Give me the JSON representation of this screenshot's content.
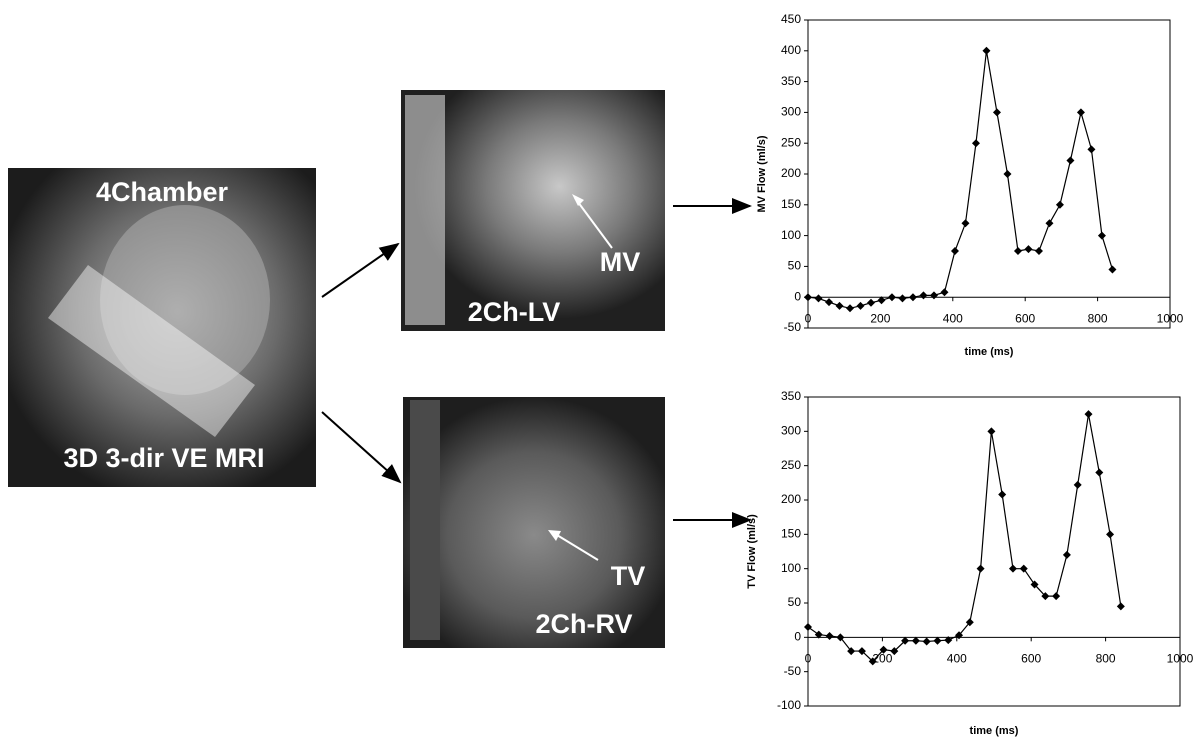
{
  "images": {
    "four_chamber": {
      "label": "4Chamber",
      "caption": "3D 3-dir VE MRI"
    },
    "lv": {
      "pointer": "MV",
      "label": "2Ch-LV"
    },
    "rv": {
      "pointer": "TV",
      "label": "2Ch-RV"
    }
  },
  "chart_data": [
    {
      "type": "line",
      "y_label": "MV Flow (ml/s)",
      "x_label": "time (ms)",
      "x": [
        0,
        29,
        58,
        87,
        116,
        145,
        174,
        203,
        232,
        261,
        290,
        319,
        348,
        377,
        406,
        435,
        464,
        493,
        522,
        551,
        580,
        609,
        638,
        667,
        696,
        725,
        754,
        783,
        812,
        841
      ],
      "series": [
        {
          "name": "MV",
          "color": "#000000",
          "values": [
            0,
            -2,
            -8,
            -14,
            -18,
            -14,
            -9,
            -5,
            0,
            -2,
            0,
            3,
            3,
            8,
            75,
            120,
            250,
            400,
            300,
            200,
            75,
            78,
            75,
            120,
            150,
            222,
            300,
            240,
            100,
            45
          ]
        }
      ],
      "xlim": [
        0,
        1000
      ],
      "xticks": [
        0,
        200,
        400,
        600,
        800,
        1000
      ],
      "ylim": [
        -50,
        450
      ],
      "yticks": [
        -50,
        0,
        50,
        100,
        150,
        200,
        250,
        300,
        350,
        400,
        450
      ],
      "grid": false
    },
    {
      "type": "line",
      "y_label": "TV Flow (ml/s)",
      "x_label": "time (ms)",
      "x": [
        0,
        29,
        58,
        87,
        116,
        145,
        174,
        203,
        232,
        261,
        290,
        319,
        348,
        377,
        406,
        435,
        464,
        493,
        522,
        551,
        580,
        609,
        638,
        667,
        696,
        725,
        754,
        783,
        812,
        841
      ],
      "series": [
        {
          "name": "TV",
          "color": "#000000",
          "values": [
            15,
            4,
            2,
            0,
            -20,
            -20,
            -35,
            -18,
            -20,
            -5,
            -5,
            -6,
            -5,
            -4,
            3,
            22,
            100,
            300,
            208,
            100,
            100,
            77,
            60,
            60,
            120,
            222,
            325,
            240,
            150,
            45
          ]
        }
      ],
      "xlim": [
        0,
        1000
      ],
      "xticks": [
        0,
        200,
        400,
        600,
        800,
        1000
      ],
      "ylim": [
        -100,
        350
      ],
      "yticks": [
        -100,
        -50,
        0,
        50,
        100,
        150,
        200,
        250,
        300,
        350
      ],
      "grid": false
    }
  ]
}
